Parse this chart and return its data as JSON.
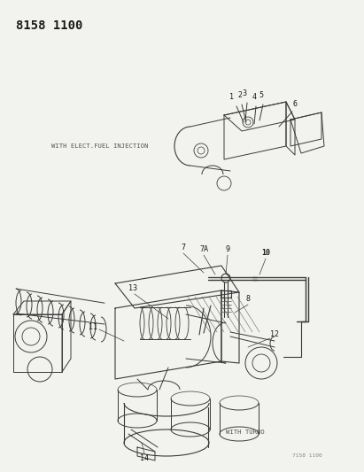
{
  "title": "8158 1100",
  "bg_color": "#f2f2ee",
  "text_color": "#1a1a1a",
  "diagram_color": "#3a3a3a",
  "top_label": "WITH ELECT.FUEL INJECTION",
  "bottom_label": "WITH TURBO",
  "footer": "7158 1100",
  "title_fontsize": 10,
  "label_fontsize": 5.2,
  "num_fontsize": 6.0,
  "footer_fontsize": 4.5
}
